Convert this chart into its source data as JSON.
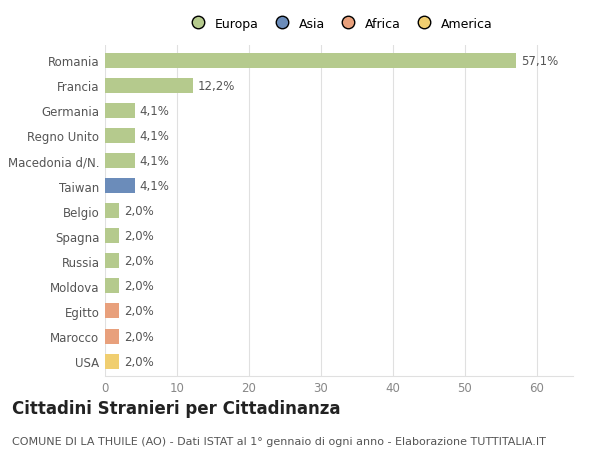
{
  "categories": [
    "Romania",
    "Francia",
    "Germania",
    "Regno Unito",
    "Macedonia d/N.",
    "Taiwan",
    "Belgio",
    "Spagna",
    "Russia",
    "Moldova",
    "Egitto",
    "Marocco",
    "USA"
  ],
  "values": [
    57.1,
    12.2,
    4.1,
    4.1,
    4.1,
    4.1,
    2.0,
    2.0,
    2.0,
    2.0,
    2.0,
    2.0,
    2.0
  ],
  "labels": [
    "57,1%",
    "12,2%",
    "4,1%",
    "4,1%",
    "4,1%",
    "4,1%",
    "2,0%",
    "2,0%",
    "2,0%",
    "2,0%",
    "2,0%",
    "2,0%",
    "2,0%"
  ],
  "colors": [
    "#b5ca8d",
    "#b5ca8d",
    "#b5ca8d",
    "#b5ca8d",
    "#b5ca8d",
    "#6b8cba",
    "#b5ca8d",
    "#b5ca8d",
    "#b5ca8d",
    "#b5ca8d",
    "#e8a07c",
    "#e8a07c",
    "#f0ce70"
  ],
  "legend": [
    {
      "label": "Europa",
      "color": "#b5ca8d"
    },
    {
      "label": "Asia",
      "color": "#6b8cba"
    },
    {
      "label": "Africa",
      "color": "#e8a07c"
    },
    {
      "label": "America",
      "color": "#f0ce70"
    }
  ],
  "xlim": [
    0,
    65
  ],
  "xticks": [
    0,
    10,
    20,
    30,
    40,
    50,
    60
  ],
  "title": "Cittadini Stranieri per Cittadinanza",
  "subtitle": "COMUNE DI LA THUILE (AO) - Dati ISTAT al 1° gennaio di ogni anno - Elaborazione TUTTITALIA.IT",
  "background_color": "#ffffff",
  "grid_color": "#e0e0e0",
  "bar_height": 0.6,
  "label_fontsize": 8.5,
  "tick_fontsize": 8.5,
  "title_fontsize": 12,
  "subtitle_fontsize": 8
}
